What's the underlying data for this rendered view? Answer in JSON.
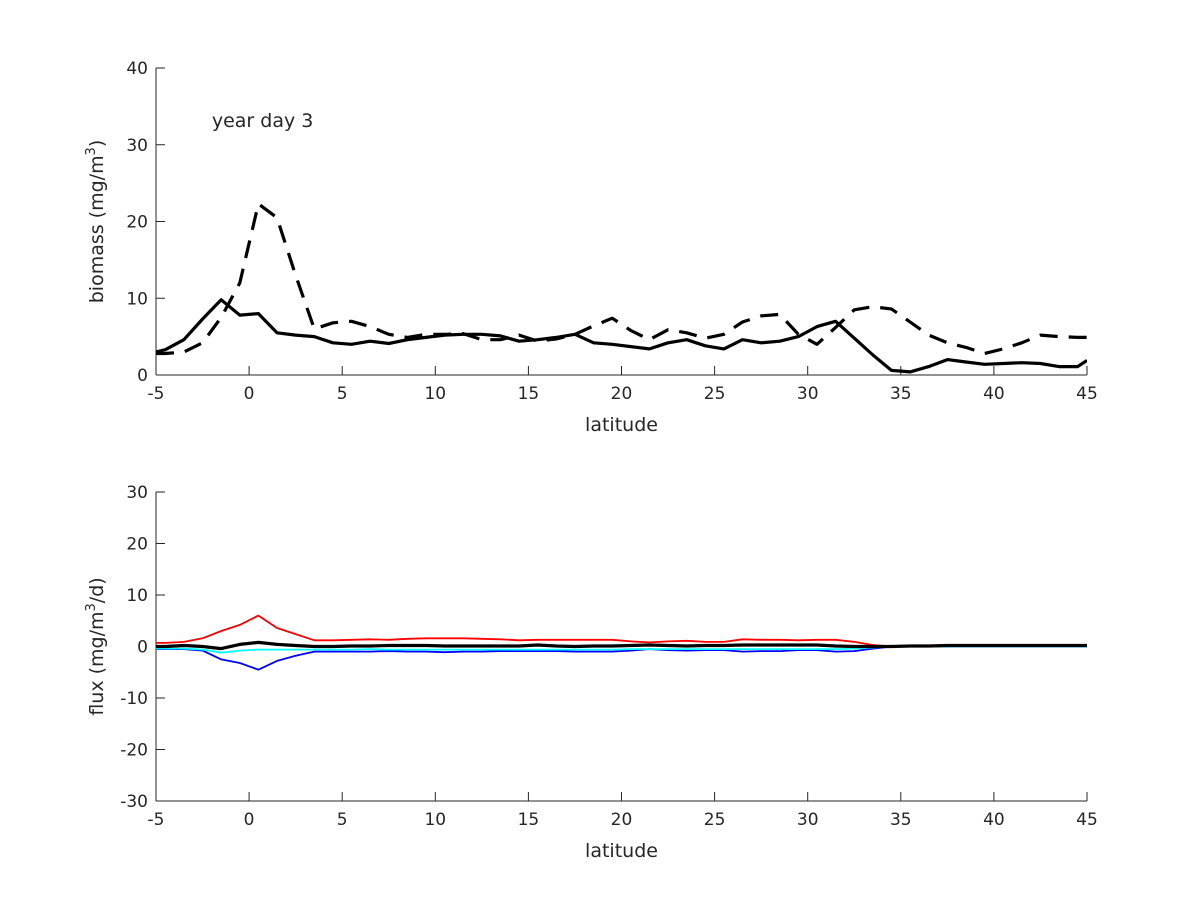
{
  "chart_data": [
    {
      "type": "line",
      "title": "",
      "annotation": "year day 3",
      "xlabel": "latitude",
      "ylabel_parts": [
        "biomass (mg/m",
        "3",
        ")"
      ],
      "xlim": [
        -5,
        45
      ],
      "ylim": [
        0,
        40
      ],
      "xticks": [
        -5,
        0,
        5,
        10,
        15,
        20,
        25,
        30,
        35,
        40,
        45
      ],
      "yticks": [
        0,
        10,
        20,
        30,
        40
      ],
      "grid": false,
      "x": [
        -5,
        -4.5,
        -3.5,
        -2.5,
        -1.5,
        -0.5,
        0.5,
        1.5,
        2.5,
        3.5,
        4.5,
        5.5,
        6.5,
        7.5,
        8.5,
        9.5,
        10.5,
        11.5,
        12.5,
        13.5,
        14.5,
        15.5,
        16.5,
        17.5,
        18.5,
        19.5,
        20.5,
        21.5,
        22.5,
        23.5,
        24.5,
        25.5,
        26.5,
        27.5,
        28.5,
        29.5,
        30.5,
        31.5,
        32.5,
        33.5,
        34.5,
        35.5,
        36.5,
        37.5,
        38.5,
        39.5,
        40.5,
        41.5,
        42.5,
        43.5,
        44.5,
        45
      ],
      "series": [
        {
          "name": "solid",
          "color": "#000000",
          "style": "solid",
          "values": [
            3.0,
            3.3,
            4.6,
            7.3,
            9.8,
            7.8,
            8.0,
            5.5,
            5.2,
            5.0,
            4.2,
            4.0,
            4.4,
            4.1,
            4.6,
            4.9,
            5.2,
            5.3,
            5.3,
            5.1,
            4.4,
            4.6,
            4.9,
            5.3,
            4.2,
            4.0,
            3.7,
            3.4,
            4.2,
            4.6,
            3.8,
            3.4,
            4.6,
            4.2,
            4.4,
            5.0,
            6.3,
            7.0,
            4.8,
            2.6,
            0.6,
            0.4,
            1.1,
            2.0,
            1.7,
            1.4,
            1.5,
            1.6,
            1.5,
            1.1,
            1.1,
            1.9
          ]
        },
        {
          "name": "dashed",
          "color": "#000000",
          "style": "dashed",
          "values": [
            2.8,
            2.8,
            3.0,
            4.2,
            7.5,
            12.0,
            22.3,
            20.5,
            13.0,
            6.0,
            6.8,
            7.0,
            6.3,
            5.3,
            4.9,
            5.3,
            5.3,
            5.4,
            4.6,
            4.6,
            5.2,
            4.4,
            4.7,
            5.3,
            6.4,
            7.4,
            5.8,
            4.6,
            5.9,
            5.5,
            4.8,
            5.3,
            6.9,
            7.7,
            7.9,
            5.3,
            4.0,
            6.2,
            8.5,
            8.9,
            8.6,
            6.9,
            5.2,
            4.2,
            3.6,
            2.8,
            3.4,
            4.2,
            5.2,
            5.0,
            4.9,
            4.9
          ]
        }
      ]
    },
    {
      "type": "line",
      "title": "",
      "xlabel": "latitude",
      "ylabel_parts": [
        "flux (mg/m",
        "3",
        "/d)"
      ],
      "xlim": [
        -5,
        45
      ],
      "ylim": [
        -30,
        30
      ],
      "xticks": [
        -5,
        0,
        5,
        10,
        15,
        20,
        25,
        30,
        35,
        40,
        45
      ],
      "yticks": [
        -30,
        -20,
        -10,
        0,
        10,
        20,
        30
      ],
      "grid": false,
      "x": [
        -5,
        -4.5,
        -3.5,
        -2.5,
        -1.5,
        -0.5,
        0.5,
        1.5,
        2.5,
        3.5,
        4.5,
        5.5,
        6.5,
        7.5,
        8.5,
        9.5,
        10.5,
        11.5,
        12.5,
        13.5,
        14.5,
        15.5,
        16.5,
        17.5,
        18.5,
        19.5,
        20.5,
        21.5,
        22.5,
        23.5,
        24.5,
        25.5,
        26.5,
        27.5,
        28.5,
        29.5,
        30.5,
        31.5,
        32.5,
        33.5,
        34.5,
        35.5,
        36.5,
        37.5,
        38.5,
        39.5,
        40.5,
        41.5,
        42.5,
        43.5,
        44.5,
        45
      ],
      "series": [
        {
          "name": "red",
          "color": "#ff0000",
          "style": "solid",
          "values": [
            0.7,
            0.7,
            0.9,
            1.6,
            3.0,
            4.2,
            6.0,
            3.6,
            2.4,
            1.2,
            1.2,
            1.3,
            1.4,
            1.3,
            1.5,
            1.6,
            1.6,
            1.6,
            1.5,
            1.4,
            1.2,
            1.3,
            1.3,
            1.3,
            1.3,
            1.3,
            1.0,
            0.8,
            1.0,
            1.1,
            0.9,
            0.9,
            1.4,
            1.3,
            1.3,
            1.2,
            1.3,
            1.3,
            0.9,
            0.3,
            0.0,
            0.0,
            0.0,
            0.0,
            0.0,
            0.0,
            0.0,
            0.0,
            0.0,
            0.0,
            0.0,
            0.0
          ]
        },
        {
          "name": "blue",
          "color": "#0000ff",
          "style": "solid",
          "values": [
            -0.5,
            -0.5,
            -0.5,
            -0.8,
            -2.5,
            -3.2,
            -4.5,
            -2.8,
            -1.8,
            -1.0,
            -1.0,
            -1.0,
            -1.0,
            -0.9,
            -1.0,
            -1.0,
            -1.1,
            -1.0,
            -1.0,
            -0.9,
            -0.9,
            -0.9,
            -0.9,
            -1.0,
            -1.0,
            -1.0,
            -0.8,
            -0.5,
            -0.7,
            -0.8,
            -0.7,
            -0.7,
            -1.0,
            -0.9,
            -0.9,
            -0.7,
            -0.7,
            -1.0,
            -0.9,
            -0.4,
            0.0,
            0.0,
            0.0,
            0.0,
            0.0,
            0.0,
            0.0,
            0.0,
            0.0,
            0.0,
            0.0,
            0.0
          ]
        },
        {
          "name": "cyan",
          "color": "#00ffff",
          "style": "solid",
          "values": [
            -0.4,
            -0.4,
            -0.4,
            -0.6,
            -1.2,
            -0.8,
            -0.6,
            -0.6,
            -0.6,
            -0.6,
            -0.6,
            -0.6,
            -0.5,
            -0.6,
            -0.6,
            -0.6,
            -0.6,
            -0.6,
            -0.6,
            -0.6,
            -0.6,
            -0.6,
            -0.6,
            -0.6,
            -0.6,
            -0.6,
            -0.5,
            -0.5,
            -0.5,
            -0.5,
            -0.5,
            -0.5,
            -0.5,
            -0.5,
            -0.5,
            -0.5,
            -0.5,
            -0.5,
            -0.4,
            -0.2,
            0.0,
            0.0,
            0.0,
            0.0,
            0.0,
            0.0,
            0.0,
            0.0,
            0.0,
            0.0,
            0.0,
            0.0
          ]
        },
        {
          "name": "black",
          "color": "#000000",
          "style": "solid",
          "values": [
            0.0,
            0.0,
            0.2,
            0.0,
            -0.4,
            0.4,
            0.8,
            0.4,
            0.2,
            0.0,
            0.0,
            0.1,
            0.1,
            0.2,
            0.2,
            0.2,
            0.1,
            0.1,
            0.1,
            0.1,
            0.1,
            0.3,
            0.1,
            0.0,
            0.1,
            0.1,
            0.2,
            0.3,
            0.2,
            0.1,
            0.2,
            0.2,
            0.3,
            0.3,
            0.3,
            0.3,
            0.3,
            0.1,
            0.0,
            0.0,
            0.0,
            0.1,
            0.1,
            0.2,
            0.2,
            0.2,
            0.2,
            0.2,
            0.2,
            0.2,
            0.2,
            0.2
          ]
        }
      ]
    }
  ]
}
